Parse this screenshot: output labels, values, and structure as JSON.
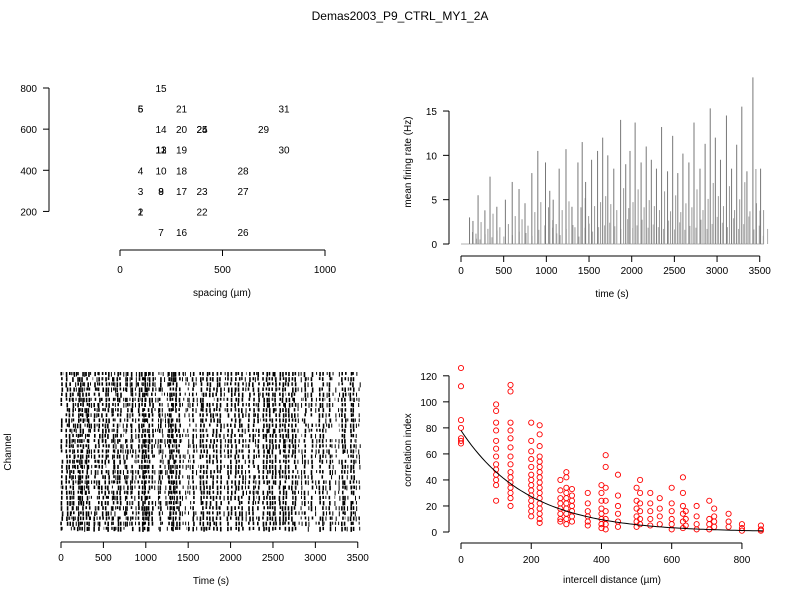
{
  "page": {
    "title": "Demas2003_P9_CTRL_MY1_2A"
  },
  "chart_data": [
    {
      "type": "scatter",
      "panel": "electrode-layout",
      "xlabel": "spacing (µm)",
      "ylabel": "",
      "xlim": [
        0,
        1000
      ],
      "ylim": [
        100,
        800
      ],
      "xticks": [
        0,
        500,
        1000
      ],
      "yticks": [
        200,
        400,
        600,
        800
      ],
      "points": [
        {
          "label": "15",
          "x": 200,
          "y": 800
        },
        {
          "label": "5",
          "x": 100,
          "y": 700
        },
        {
          "label": "6",
          "x": 100,
          "y": 700
        },
        {
          "label": "21",
          "x": 300,
          "y": 700
        },
        {
          "label": "31",
          "x": 800,
          "y": 700
        },
        {
          "label": "14",
          "x": 200,
          "y": 600
        },
        {
          "label": "20",
          "x": 300,
          "y": 600
        },
        {
          "label": "24",
          "x": 400,
          "y": 600
        },
        {
          "label": "25",
          "x": 400,
          "y": 600
        },
        {
          "label": "29",
          "x": 700,
          "y": 600
        },
        {
          "label": "11",
          "x": 200,
          "y": 500
        },
        {
          "label": "12",
          "x": 200,
          "y": 500
        },
        {
          "label": "13",
          "x": 200,
          "y": 500
        },
        {
          "label": "19",
          "x": 300,
          "y": 500
        },
        {
          "label": "30",
          "x": 800,
          "y": 500
        },
        {
          "label": "4",
          "x": 100,
          "y": 400
        },
        {
          "label": "10",
          "x": 200,
          "y": 400
        },
        {
          "label": "18",
          "x": 300,
          "y": 400
        },
        {
          "label": "28",
          "x": 600,
          "y": 400
        },
        {
          "label": "3",
          "x": 100,
          "y": 300
        },
        {
          "label": "8",
          "x": 200,
          "y": 300
        },
        {
          "label": "9",
          "x": 200,
          "y": 300
        },
        {
          "label": "17",
          "x": 300,
          "y": 300
        },
        {
          "label": "23",
          "x": 400,
          "y": 300
        },
        {
          "label": "27",
          "x": 600,
          "y": 300
        },
        {
          "label": "1",
          "x": 100,
          "y": 200
        },
        {
          "label": "2",
          "x": 100,
          "y": 200
        },
        {
          "label": "22",
          "x": 400,
          "y": 200
        },
        {
          "label": "7",
          "x": 200,
          "y": 100
        },
        {
          "label": "16",
          "x": 300,
          "y": 100
        },
        {
          "label": "26",
          "x": 600,
          "y": 100
        }
      ]
    },
    {
      "type": "bar",
      "panel": "mean-firing-rate",
      "xlabel": "time (s)",
      "ylabel": "mean firing rate (Hz)",
      "xlim": [
        0,
        3550
      ],
      "ylim": [
        0,
        18.5
      ],
      "xticks": [
        0,
        500,
        1000,
        1500,
        2000,
        2500,
        3000,
        3500
      ],
      "yticks": [
        0,
        5,
        10,
        15
      ],
      "x": [
        100,
        140,
        200,
        280,
        340,
        420,
        520,
        600,
        680,
        750,
        830,
        900,
        990,
        1040,
        1080,
        1150,
        1230,
        1300,
        1370,
        1420,
        1460,
        1530,
        1600,
        1660,
        1720,
        1790,
        1870,
        1930,
        1980,
        2040,
        2110,
        2170,
        2230,
        2290,
        2350,
        2420,
        2480,
        2540,
        2600,
        2670,
        2730,
        2800,
        2860,
        2920,
        2980,
        3040,
        3110,
        3170,
        3230,
        3290,
        3350,
        3420,
        3460,
        3510
      ],
      "values": [
        3.0,
        2.6,
        5.5,
        3.8,
        7.6,
        4.2,
        5.0,
        7.0,
        6.2,
        4.6,
        8.0,
        10.5,
        9.2,
        6.0,
        5.0,
        8.5,
        10.7,
        4.2,
        9.2,
        11.5,
        7.0,
        9.5,
        10.5,
        12.0,
        10.0,
        8.5,
        14.0,
        9.0,
        10.5,
        13.7,
        9.2,
        11.0,
        9.5,
        8.5,
        13.2,
        8.2,
        12.2,
        8.0,
        10.2,
        9.2,
        13.7,
        8.5,
        11.3,
        15.3,
        12.0,
        9.5,
        14.5,
        8.5,
        11.2,
        15.5,
        8.2,
        18.8,
        4.6,
        8.5
      ]
    },
    {
      "type": "raster",
      "panel": "spike-raster",
      "xlabel": "Time (s)",
      "ylabel": "Channel",
      "xlim": [
        0,
        3550
      ],
      "xticks": [
        0,
        500,
        1000,
        1500,
        2000,
        2500,
        3000,
        3500
      ],
      "channels": 31,
      "burst_times": [
        10,
        70,
        105,
        130,
        150,
        175,
        205,
        230,
        255,
        280,
        305,
        330,
        355,
        400,
        430,
        450,
        490,
        530,
        560,
        600,
        620,
        640,
        670,
        700,
        740,
        760,
        780,
        820,
        840,
        880,
        920,
        960,
        985,
        1000,
        1025,
        1040,
        1080,
        1110,
        1150,
        1170,
        1200,
        1230,
        1260,
        1280,
        1300,
        1325,
        1345,
        1360,
        1400,
        1440,
        1470,
        1500,
        1520,
        1560,
        1600,
        1650,
        1680,
        1720,
        1760,
        1800,
        1840,
        1880,
        1930,
        1970,
        2010,
        2060,
        2100,
        2140,
        2180,
        2220,
        2270,
        2300,
        2330,
        2390,
        2430,
        2460,
        2500,
        2530,
        2580,
        2620,
        2650,
        2690,
        2730,
        2760,
        2800,
        2840,
        2880,
        2920,
        2960,
        3010,
        3050,
        3090,
        3130,
        3170,
        3200,
        3240,
        3280,
        3320,
        3350,
        3380,
        3420,
        3450,
        3480,
        3520
      ]
    },
    {
      "type": "scatter",
      "panel": "correlation-index",
      "xlabel": "intercell distance (µm)",
      "ylabel": "correlation index",
      "xlim": [
        0,
        860
      ],
      "ylim": [
        0,
        126
      ],
      "xticks": [
        0,
        200,
        400,
        600,
        800
      ],
      "yticks": [
        0,
        20,
        40,
        60,
        80,
        100,
        120
      ],
      "point_color": "#ff0000",
      "fit_color": "#000000",
      "points": [
        [
          0,
          126
        ],
        [
          0,
          112
        ],
        [
          0,
          86
        ],
        [
          0,
          80
        ],
        [
          0,
          72
        ],
        [
          0,
          70
        ],
        [
          0,
          68
        ],
        [
          100,
          98
        ],
        [
          100,
          93
        ],
        [
          100,
          84
        ],
        [
          100,
          78
        ],
        [
          100,
          70
        ],
        [
          100,
          64
        ],
        [
          100,
          58
        ],
        [
          100,
          52
        ],
        [
          100,
          48
        ],
        [
          100,
          44
        ],
        [
          100,
          40
        ],
        [
          100,
          36
        ],
        [
          100,
          24
        ],
        [
          141,
          113
        ],
        [
          141,
          108
        ],
        [
          141,
          84
        ],
        [
          141,
          78
        ],
        [
          141,
          72
        ],
        [
          141,
          65
        ],
        [
          141,
          58
        ],
        [
          141,
          52
        ],
        [
          141,
          46
        ],
        [
          141,
          42
        ],
        [
          141,
          38
        ],
        [
          141,
          34
        ],
        [
          141,
          30
        ],
        [
          141,
          26
        ],
        [
          141,
          20
        ],
        [
          200,
          84
        ],
        [
          200,
          70
        ],
        [
          200,
          62
        ],
        [
          200,
          56
        ],
        [
          200,
          50
        ],
        [
          200,
          44
        ],
        [
          200,
          40
        ],
        [
          200,
          36
        ],
        [
          200,
          32
        ],
        [
          200,
          28
        ],
        [
          200,
          24
        ],
        [
          200,
          20
        ],
        [
          200,
          16
        ],
        [
          200,
          12
        ],
        [
          224,
          82
        ],
        [
          224,
          75
        ],
        [
          224,
          66
        ],
        [
          224,
          58
        ],
        [
          224,
          54
        ],
        [
          224,
          50
        ],
        [
          224,
          46
        ],
        [
          224,
          42
        ],
        [
          224,
          38
        ],
        [
          224,
          34
        ],
        [
          224,
          30
        ],
        [
          224,
          26
        ],
        [
          224,
          22
        ],
        [
          224,
          18
        ],
        [
          224,
          14
        ],
        [
          224,
          10
        ],
        [
          224,
          7
        ],
        [
          283,
          40
        ],
        [
          283,
          32
        ],
        [
          283,
          26
        ],
        [
          283,
          22
        ],
        [
          283,
          18
        ],
        [
          283,
          14
        ],
        [
          283,
          10
        ],
        [
          283,
          8
        ],
        [
          300,
          46
        ],
        [
          300,
          42
        ],
        [
          300,
          34
        ],
        [
          300,
          30
        ],
        [
          300,
          26
        ],
        [
          300,
          22
        ],
        [
          300,
          18
        ],
        [
          300,
          14
        ],
        [
          300,
          10
        ],
        [
          300,
          6
        ],
        [
          316,
          33
        ],
        [
          316,
          28
        ],
        [
          316,
          24
        ],
        [
          316,
          20
        ],
        [
          316,
          16
        ],
        [
          316,
          12
        ],
        [
          316,
          8
        ],
        [
          361,
          30
        ],
        [
          361,
          22
        ],
        [
          361,
          16
        ],
        [
          361,
          12
        ],
        [
          361,
          8
        ],
        [
          361,
          5
        ],
        [
          400,
          36
        ],
        [
          400,
          30
        ],
        [
          400,
          24
        ],
        [
          400,
          18
        ],
        [
          400,
          14
        ],
        [
          400,
          10
        ],
        [
          400,
          6
        ],
        [
          400,
          3
        ],
        [
          412,
          59
        ],
        [
          412,
          50
        ],
        [
          412,
          34
        ],
        [
          412,
          24
        ],
        [
          412,
          16
        ],
        [
          412,
          10
        ],
        [
          412,
          6
        ],
        [
          412,
          2
        ],
        [
          447,
          44
        ],
        [
          447,
          28
        ],
        [
          447,
          20
        ],
        [
          447,
          14
        ],
        [
          447,
          8
        ],
        [
          447,
          4
        ],
        [
          500,
          34
        ],
        [
          500,
          24
        ],
        [
          500,
          18
        ],
        [
          500,
          12
        ],
        [
          500,
          8
        ],
        [
          500,
          4
        ],
        [
          510,
          40
        ],
        [
          510,
          30
        ],
        [
          510,
          22
        ],
        [
          510,
          16
        ],
        [
          510,
          10
        ],
        [
          510,
          6
        ],
        [
          539,
          30
        ],
        [
          539,
          22
        ],
        [
          539,
          16
        ],
        [
          539,
          10
        ],
        [
          539,
          5
        ],
        [
          566,
          26
        ],
        [
          566,
          18
        ],
        [
          566,
          12
        ],
        [
          566,
          6
        ],
        [
          600,
          34
        ],
        [
          600,
          22
        ],
        [
          600,
          16
        ],
        [
          600,
          10
        ],
        [
          600,
          6
        ],
        [
          600,
          2
        ],
        [
          632,
          42
        ],
        [
          632,
          30
        ],
        [
          632,
          20
        ],
        [
          632,
          14
        ],
        [
          632,
          8
        ],
        [
          632,
          3
        ],
        [
          640,
          16
        ],
        [
          640,
          10
        ],
        [
          640,
          5
        ],
        [
          671,
          20
        ],
        [
          671,
          12
        ],
        [
          671,
          6
        ],
        [
          671,
          2
        ],
        [
          707,
          24
        ],
        [
          707,
          10
        ],
        [
          707,
          6
        ],
        [
          707,
          2
        ],
        [
          721,
          18
        ],
        [
          721,
          12
        ],
        [
          721,
          8
        ],
        [
          721,
          4
        ],
        [
          762,
          14
        ],
        [
          762,
          8
        ],
        [
          762,
          4
        ],
        [
          800,
          6
        ],
        [
          800,
          3
        ],
        [
          800,
          1
        ],
        [
          854,
          5
        ],
        [
          854,
          2
        ],
        [
          854,
          1
        ]
      ],
      "fit": {
        "model": "exponential",
        "a": 78,
        "lambda": 190
      }
    }
  ]
}
